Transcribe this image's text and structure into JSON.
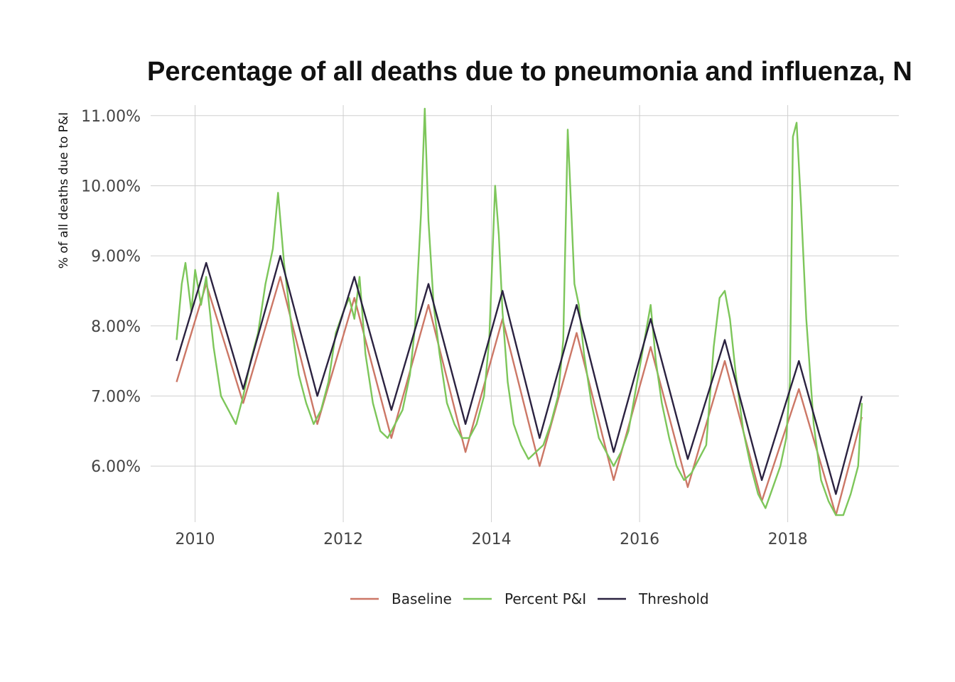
{
  "chart_data": {
    "type": "line",
    "title": "Percentage of all deaths due to pneumonia and influenza, N",
    "xlabel": "",
    "ylabel": "% of all deaths due to P&I",
    "xlim": [
      2009.4,
      2019.5
    ],
    "ylim": [
      5.2,
      11.15
    ],
    "x_ticks": [
      {
        "value": 2010,
        "label": "2010"
      },
      {
        "value": 2012,
        "label": "2012"
      },
      {
        "value": 2014,
        "label": "2014"
      },
      {
        "value": 2016,
        "label": "2016"
      },
      {
        "value": 2018,
        "label": "2018"
      }
    ],
    "y_ticks": [
      {
        "value": 6,
        "label": "6.00%"
      },
      {
        "value": 7,
        "label": "7.00%"
      },
      {
        "value": 8,
        "label": "8.00%"
      },
      {
        "value": 9,
        "label": "9.00%"
      },
      {
        "value": 10,
        "label": "10.00%"
      },
      {
        "value": 11,
        "label": "11.00%"
      }
    ],
    "grid": true,
    "legend_position": "bottom",
    "series": [
      {
        "name": "Baseline",
        "color": "#cc7766",
        "x": [
          2009.75,
          2010.15,
          2010.65,
          2011.15,
          2011.65,
          2012.15,
          2012.65,
          2013.15,
          2013.65,
          2014.15,
          2014.65,
          2015.15,
          2015.65,
          2016.15,
          2016.65,
          2017.15,
          2017.65,
          2018.15,
          2018.65,
          2019.0
        ],
        "values": [
          7.2,
          8.6,
          6.9,
          8.7,
          6.6,
          8.4,
          6.4,
          8.3,
          6.2,
          8.1,
          6.0,
          7.9,
          5.8,
          7.7,
          5.7,
          7.5,
          5.5,
          7.1,
          5.3,
          6.7
        ]
      },
      {
        "name": "Percent P&I",
        "color": "#7dc65a",
        "x": [
          2009.75,
          2009.82,
          2009.87,
          2009.95,
          2010.0,
          2010.08,
          2010.15,
          2010.25,
          2010.35,
          2010.45,
          2010.55,
          2010.65,
          2010.75,
          2010.85,
          2010.95,
          2011.05,
          2011.12,
          2011.2,
          2011.3,
          2011.4,
          2011.5,
          2011.6,
          2011.7,
          2011.8,
          2011.9,
          2012.0,
          2012.08,
          2012.15,
          2012.22,
          2012.3,
          2012.4,
          2012.5,
          2012.6,
          2012.7,
          2012.8,
          2012.9,
          2012.97,
          2013.05,
          2013.1,
          2013.15,
          2013.22,
          2013.3,
          2013.4,
          2013.5,
          2013.6,
          2013.7,
          2013.8,
          2013.9,
          2013.97,
          2014.05,
          2014.1,
          2014.15,
          2014.22,
          2014.3,
          2014.4,
          2014.5,
          2014.6,
          2014.7,
          2014.8,
          2014.9,
          2014.97,
          2015.03,
          2015.08,
          2015.12,
          2015.18,
          2015.25,
          2015.35,
          2015.45,
          2015.55,
          2015.65,
          2015.75,
          2015.85,
          2015.95,
          2016.05,
          2016.15,
          2016.22,
          2016.3,
          2016.4,
          2016.5,
          2016.6,
          2016.7,
          2016.8,
          2016.9,
          2017.0,
          2017.08,
          2017.15,
          2017.22,
          2017.3,
          2017.4,
          2017.5,
          2017.6,
          2017.7,
          2017.8,
          2017.9,
          2017.98,
          2018.03,
          2018.07,
          2018.12,
          2018.18,
          2018.25,
          2018.35,
          2018.45,
          2018.55,
          2018.65,
          2018.75,
          2018.85,
          2018.95,
          2019.0
        ],
        "values": [
          7.8,
          8.6,
          8.9,
          8.2,
          8.8,
          8.3,
          8.7,
          7.7,
          7.0,
          6.8,
          6.6,
          7.0,
          7.5,
          7.9,
          8.6,
          9.1,
          9.9,
          8.9,
          8.0,
          7.3,
          6.9,
          6.6,
          6.8,
          7.2,
          7.9,
          8.2,
          8.4,
          8.1,
          8.7,
          7.6,
          6.9,
          6.5,
          6.4,
          6.6,
          6.8,
          7.3,
          8.0,
          9.6,
          11.1,
          9.5,
          8.3,
          7.6,
          6.9,
          6.6,
          6.4,
          6.4,
          6.6,
          7.0,
          7.8,
          10.0,
          9.3,
          8.2,
          7.2,
          6.6,
          6.3,
          6.1,
          6.2,
          6.3,
          6.6,
          7.0,
          7.8,
          10.8,
          9.6,
          8.6,
          8.3,
          7.6,
          6.9,
          6.4,
          6.2,
          6.0,
          6.2,
          6.5,
          7.1,
          7.7,
          8.3,
          7.5,
          6.9,
          6.4,
          6.0,
          5.8,
          5.9,
          6.1,
          6.3,
          7.7,
          8.4,
          8.5,
          8.1,
          7.3,
          6.5,
          6.0,
          5.6,
          5.4,
          5.7,
          6.0,
          6.4,
          7.2,
          10.7,
          10.9,
          9.7,
          8.1,
          6.6,
          5.8,
          5.5,
          5.3,
          5.3,
          5.6,
          6.0,
          6.9
        ]
      },
      {
        "name": "Threshold",
        "color": "#2b2240",
        "x": [
          2009.75,
          2010.15,
          2010.65,
          2011.15,
          2011.65,
          2012.15,
          2012.65,
          2013.15,
          2013.65,
          2014.15,
          2014.65,
          2015.15,
          2015.65,
          2016.15,
          2016.65,
          2017.15,
          2017.65,
          2018.15,
          2018.65,
          2019.0
        ],
        "values": [
          7.5,
          8.9,
          7.1,
          9.0,
          7.0,
          8.7,
          6.8,
          8.6,
          6.6,
          8.5,
          6.4,
          8.3,
          6.2,
          8.1,
          6.1,
          7.8,
          5.8,
          7.5,
          5.6,
          7.0
        ]
      }
    ]
  }
}
